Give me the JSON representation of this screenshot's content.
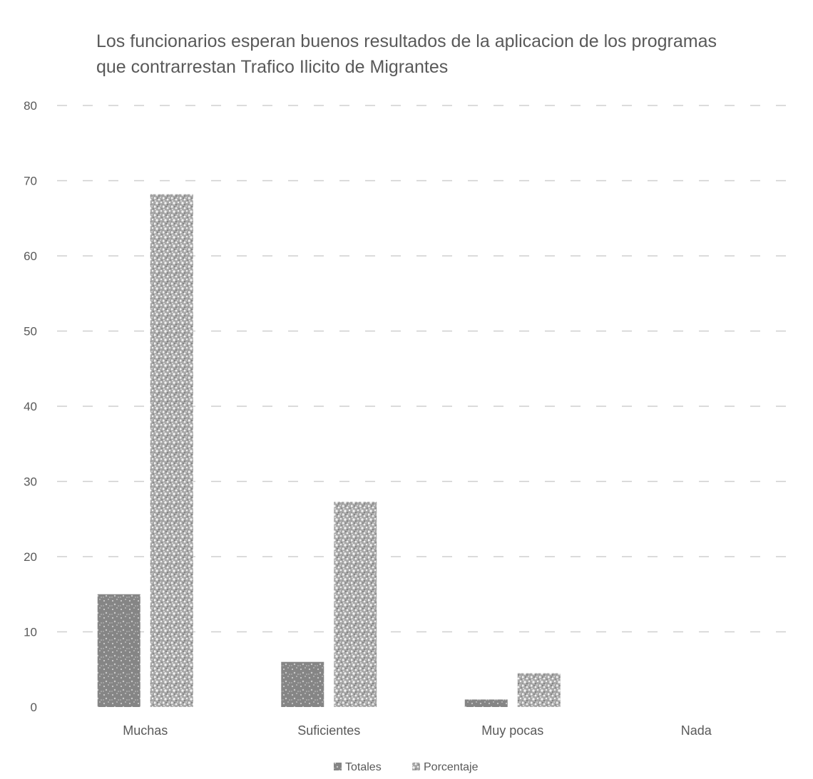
{
  "chart_data": {
    "type": "bar",
    "title": "Los funcionarios esperan buenos resultados de la aplicacion de los programas que contrarrestan Trafico Ilicito de Migrantes",
    "categories": [
      "Muchas",
      "Suficientes",
      "Muy pocas",
      "Nada"
    ],
    "series": [
      {
        "name": "Totales",
        "values": [
          15,
          6,
          1,
          0
        ],
        "color": "#858585"
      },
      {
        "name": "Porcentaje",
        "values": [
          68.2,
          27.3,
          4.5,
          0
        ],
        "color": "#a8a8a8"
      }
    ],
    "xlabel": "",
    "ylabel": "",
    "ylim": [
      0,
      80
    ],
    "yticks": [
      0,
      10,
      20,
      30,
      40,
      50,
      60,
      70,
      80
    ],
    "grid": true,
    "legend": "bottom"
  }
}
